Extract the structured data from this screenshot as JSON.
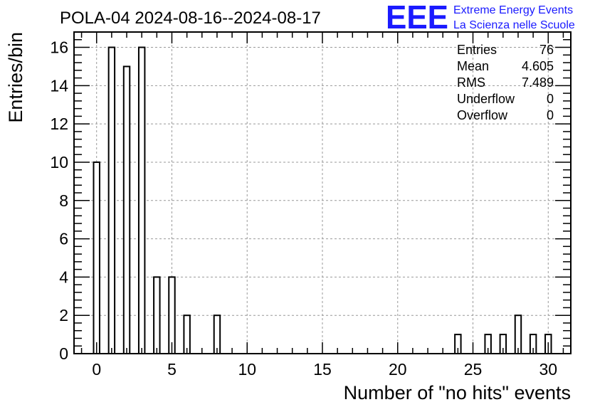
{
  "title": "POLA-04 2024-08-16--2024-08-17",
  "logo": {
    "mark": "EEE",
    "line1": "Extreme Energy Events",
    "line2": "La Scienza nelle Scuole",
    "color": "#1a1aff"
  },
  "stats": [
    {
      "label": "Entries",
      "value": "76"
    },
    {
      "label": "Mean",
      "value": "4.605"
    },
    {
      "label": "RMS",
      "value": "7.489"
    },
    {
      "label": "Underflow",
      "value": "0"
    },
    {
      "label": "Overflow",
      "value": "0"
    }
  ],
  "chart_data": {
    "type": "bar",
    "title": "POLA-04 2024-08-16--2024-08-17",
    "xlabel": "Number of \"no hits\" events",
    "ylabel": "Entries/bin",
    "xlim": [
      -1.5,
      31.5
    ],
    "ylim": [
      0,
      16.8
    ],
    "bin_width": 0.4,
    "x": [
      0,
      1,
      2,
      3,
      4,
      5,
      6,
      8,
      24,
      26,
      27,
      28,
      29,
      30
    ],
    "values": [
      10,
      16,
      15,
      16,
      4,
      4,
      2,
      2,
      1,
      1,
      1,
      2,
      1,
      1
    ],
    "xticks": [
      0,
      5,
      10,
      15,
      20,
      25,
      30
    ],
    "xtick_labels": [
      "0",
      "5",
      "10",
      "15",
      "20",
      "25",
      "30"
    ],
    "yticks": [
      0,
      2,
      4,
      6,
      8,
      10,
      12,
      14,
      16
    ],
    "ytick_labels": [
      "0",
      "2",
      "4",
      "6",
      "8",
      "10",
      "12",
      "14",
      "16"
    ],
    "grid": true
  }
}
